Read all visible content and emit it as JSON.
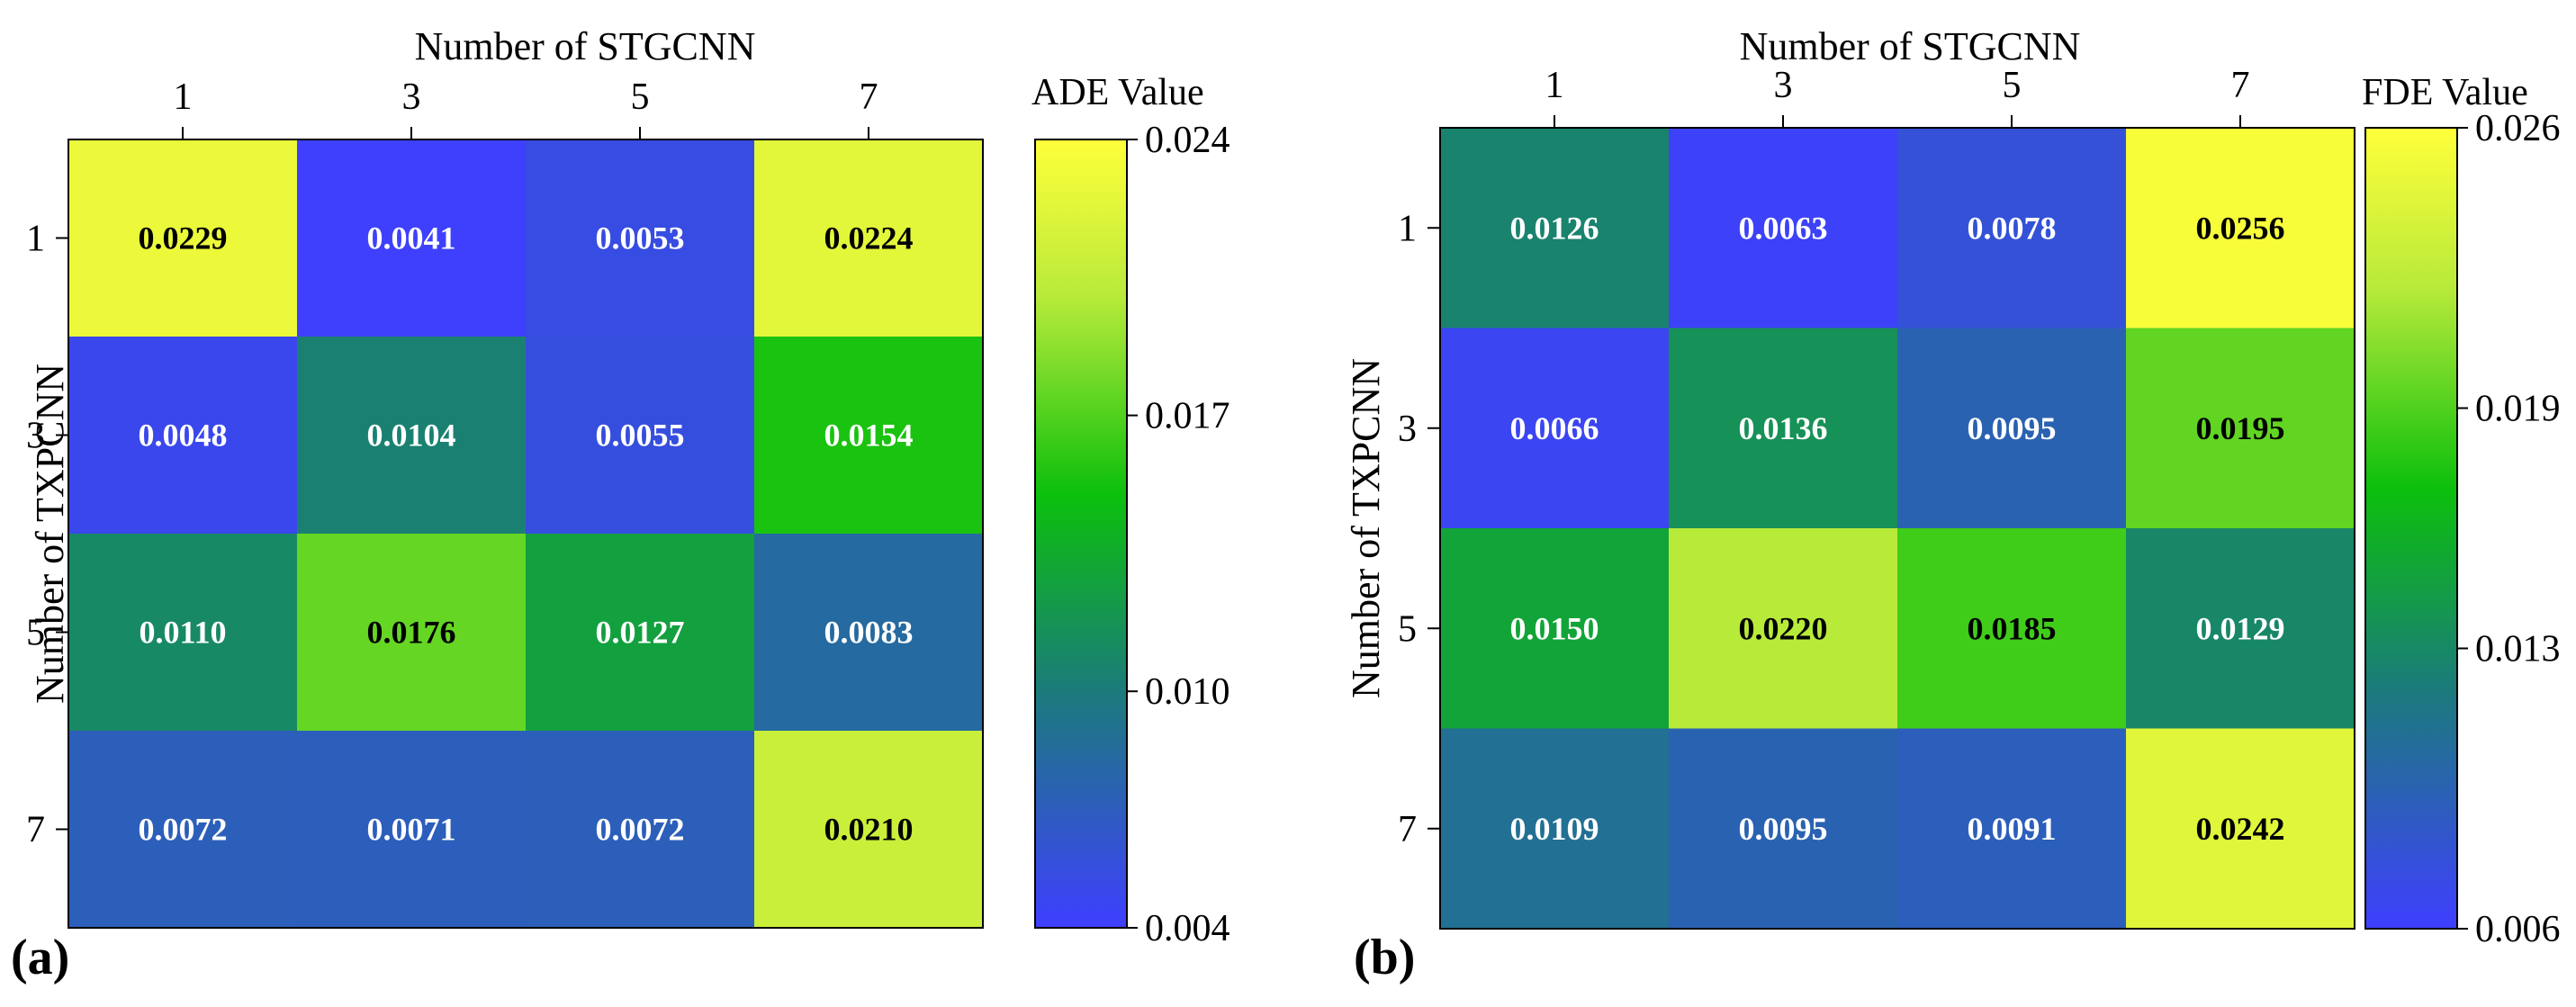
{
  "chart_data": [
    {
      "type": "heatmap",
      "panel_label": "(a)",
      "xlabel": "Number of STGCNN",
      "ylabel": "Number of TXPCNN",
      "x_categories": [
        "1",
        "3",
        "5",
        "7"
      ],
      "y_categories": [
        "1",
        "3",
        "5",
        "7"
      ],
      "values": [
        [
          0.0229,
          0.0041,
          0.0053,
          0.0224
        ],
        [
          0.0048,
          0.0104,
          0.0055,
          0.0154
        ],
        [
          0.011,
          0.0176,
          0.0127,
          0.0083
        ],
        [
          0.0072,
          0.0071,
          0.0072,
          0.021
        ]
      ],
      "value_labels": [
        [
          "0.0229",
          "0.0041",
          "0.0053",
          "0.0224"
        ],
        [
          "0.0048",
          "0.0104",
          "0.0055",
          "0.0154"
        ],
        [
          "0.0110",
          "0.0176",
          "0.0127",
          "0.0083"
        ],
        [
          "0.0072",
          "0.0071",
          "0.0072",
          "0.0210"
        ]
      ],
      "colorbar": {
        "title": "ADE Value",
        "range": [
          0.004,
          0.024
        ],
        "ticks": [
          0.004,
          0.01,
          0.017,
          0.024
        ],
        "tick_labels": [
          "0.004",
          "0.010",
          "0.017",
          "0.024"
        ]
      }
    },
    {
      "type": "heatmap",
      "panel_label": "(b)",
      "xlabel": "Number of STGCNN",
      "ylabel": "Number of TXPCNN",
      "x_categories": [
        "1",
        "3",
        "5",
        "7"
      ],
      "y_categories": [
        "1",
        "3",
        "5",
        "7"
      ],
      "values": [
        [
          0.0126,
          0.0063,
          0.0078,
          0.0256
        ],
        [
          0.0066,
          0.0136,
          0.0095,
          0.0195
        ],
        [
          0.015,
          0.022,
          0.0185,
          0.0129
        ],
        [
          0.0109,
          0.0095,
          0.0091,
          0.0242
        ]
      ],
      "value_labels": [
        [
          "0.0126",
          "0.0063",
          "0.0078",
          "0.0256"
        ],
        [
          "0.0066",
          "0.0136",
          "0.0095",
          "0.0195"
        ],
        [
          "0.0150",
          "0.0220",
          "0.0185",
          "0.0129"
        ],
        [
          "0.0109",
          "0.0095",
          "0.0091",
          "0.0242"
        ]
      ],
      "colorbar": {
        "title": "FDE Value",
        "range": [
          0.006,
          0.026
        ],
        "ticks": [
          0.006,
          0.013,
          0.019,
          0.026
        ],
        "tick_labels": [
          "0.006",
          "0.013",
          "0.019",
          "0.026"
        ]
      }
    }
  ],
  "colormap": {
    "stops": [
      "#3f3fff",
      "#1b7b7b",
      "#0cc00c",
      "#b8ea3a",
      "#ffff3a"
    ],
    "positions": [
      0,
      0.3,
      0.55,
      0.8,
      1
    ]
  }
}
